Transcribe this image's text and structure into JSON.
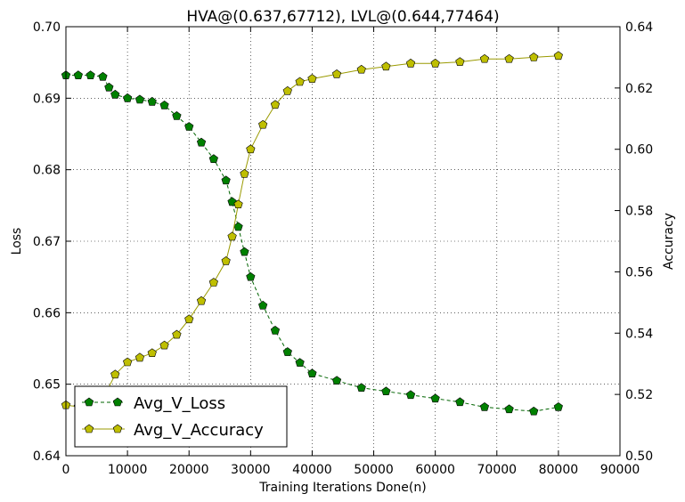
{
  "chart_data": {
    "type": "line",
    "title": "HVA@(0.637,67712), LVL@(0.644,77464)",
    "xlabel": "Training Iterations Done(n)",
    "ylabel_left": "Loss",
    "ylabel_right": "Accuracy",
    "xlim": [
      0,
      90000
    ],
    "ylim_left": [
      0.64,
      0.7
    ],
    "ylim_right": [
      0.5,
      0.64
    ],
    "xticks": [
      0,
      10000,
      20000,
      30000,
      40000,
      50000,
      60000,
      70000,
      80000,
      90000
    ],
    "yticks_left": [
      "0.64",
      "0.65",
      "0.66",
      "0.67",
      "0.68",
      "0.69",
      "0.70"
    ],
    "yticks_right": [
      "0.50",
      "0.52",
      "0.54",
      "0.56",
      "0.58",
      "0.60",
      "0.62",
      "0.64"
    ],
    "grid": true,
    "legend_position": "bottom-left",
    "series": [
      {
        "name": "Avg_V_Loss",
        "axis": "left",
        "color": "#008000",
        "x": [
          0,
          2000,
          4000,
          6000,
          7000,
          8000,
          10000,
          12000,
          14000,
          16000,
          18000,
          20000,
          22000,
          24000,
          26000,
          27000,
          28000,
          29000,
          30000,
          32000,
          34000,
          36000,
          38000,
          40000,
          44000,
          48000,
          52000,
          56000,
          60000,
          64000,
          68000,
          72000,
          76000,
          80000
        ],
        "y": [
          0.6932,
          0.6932,
          0.6932,
          0.693,
          0.6915,
          0.6905,
          0.69,
          0.6898,
          0.6895,
          0.689,
          0.6875,
          0.686,
          0.6838,
          0.6815,
          0.6785,
          0.6755,
          0.672,
          0.6685,
          0.665,
          0.661,
          0.6575,
          0.6545,
          0.653,
          0.6515,
          0.6505,
          0.6495,
          0.649,
          0.6485,
          0.648,
          0.6475,
          0.6468,
          0.6465,
          0.6462,
          0.6468
        ]
      },
      {
        "name": "Avg_V_Accuracy",
        "axis": "right",
        "color": "#bfbf00",
        "x": [
          0,
          2000,
          4000,
          6000,
          8000,
          10000,
          12000,
          14000,
          16000,
          18000,
          20000,
          22000,
          24000,
          26000,
          27000,
          28000,
          29000,
          30000,
          32000,
          34000,
          36000,
          38000,
          40000,
          44000,
          48000,
          52000,
          56000,
          60000,
          64000,
          68000,
          72000,
          76000,
          80000
        ],
        "y": [
          0.5165,
          0.516,
          0.5165,
          0.5185,
          0.5265,
          0.5305,
          0.532,
          0.5335,
          0.536,
          0.5395,
          0.5445,
          0.5505,
          0.5565,
          0.5635,
          0.5715,
          0.582,
          0.592,
          0.6,
          0.608,
          0.6145,
          0.619,
          0.622,
          0.623,
          0.6245,
          0.626,
          0.627,
          0.628,
          0.628,
          0.6285,
          0.6295,
          0.6295,
          0.63,
          0.6305
        ]
      }
    ]
  }
}
